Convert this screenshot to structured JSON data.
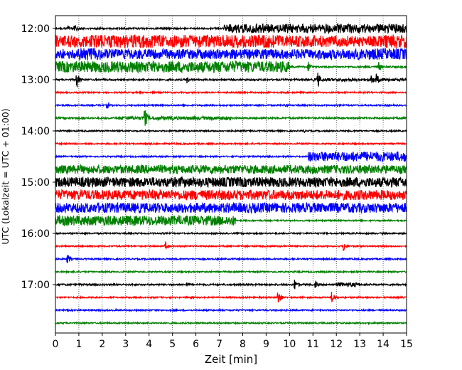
{
  "chart_data": {
    "type": "line",
    "title": "",
    "xlabel": "Zeit  [min]",
    "ylabel": "UTC (Lokalzeit = UTC + 01:00)",
    "xlim": [
      0,
      15
    ],
    "x_ticks": [
      "0",
      "1",
      "2",
      "3",
      "4",
      "5",
      "6",
      "7",
      "8",
      "9",
      "10",
      "11",
      "12",
      "13",
      "14",
      "15"
    ],
    "x_grid": "dotted vertical lines at every minute",
    "y_ticks": [
      {
        "label": "12:00",
        "minutes": 0
      },
      {
        "label": "13:00",
        "minutes": 60
      },
      {
        "label": "14:00",
        "minutes": 120
      },
      {
        "label": "15:00",
        "minutes": 180
      },
      {
        "label": "16:00",
        "minutes": 240
      },
      {
        "label": "17:00",
        "minutes": 300
      }
    ],
    "trace_interval_min": 15,
    "color_cycle": [
      "#000000",
      "#ff0000",
      "#0000ff",
      "#008000"
    ],
    "traces": [
      {
        "start": "12:00",
        "color": "#000000",
        "base": 1.2,
        "noise": [
          [
            7.2,
            15,
            6.5
          ]
        ],
        "events": [
          {
            "t": 0.5,
            "amp": 5
          },
          {
            "t": 0.8,
            "amp": 9
          }
        ]
      },
      {
        "start": "12:15",
        "color": "#ff0000",
        "base": 8,
        "noise": [
          [
            0,
            10,
            9
          ],
          [
            14,
            15,
            10
          ]
        ],
        "events": []
      },
      {
        "start": "12:30",
        "color": "#0000ff",
        "base": 7,
        "noise": [
          [
            1,
            2,
            9
          ],
          [
            12.5,
            15,
            8
          ]
        ],
        "events": [
          {
            "t": 1.2,
            "amp": 10
          }
        ]
      },
      {
        "start": "12:45",
        "color": "#008000",
        "base": 1.2,
        "noise": [
          [
            0,
            10,
            8
          ]
        ],
        "events": [
          {
            "t": 10.8,
            "amp": 9
          },
          {
            "t": 13.8,
            "amp": 8
          }
        ]
      },
      {
        "start": "13:00",
        "color": "#000000",
        "base": 1.2,
        "noise": [
          [
            11,
            15,
            2
          ]
        ],
        "events": [
          {
            "t": 0.9,
            "amp": 14
          },
          {
            "t": 5.6,
            "amp": 6
          },
          {
            "t": 11.2,
            "amp": 12
          },
          {
            "t": 13.5,
            "amp": 9
          },
          {
            "t": 13.7,
            "amp": 10
          }
        ]
      },
      {
        "start": "13:15",
        "color": "#ff0000",
        "base": 1,
        "noise": [],
        "events": []
      },
      {
        "start": "13:30",
        "color": "#0000ff",
        "base": 1,
        "noise": [],
        "events": [
          {
            "t": 2.2,
            "amp": 6
          },
          {
            "t": 9.8,
            "amp": 4
          }
        ]
      },
      {
        "start": "13:45",
        "color": "#008000",
        "base": 1.2,
        "noise": [
          [
            2.7,
            7.5,
            2.5
          ]
        ],
        "events": [
          {
            "t": 3.8,
            "amp": 16
          }
        ]
      },
      {
        "start": "14:00",
        "color": "#000000",
        "base": 1,
        "noise": [],
        "events": [
          {
            "t": 10.6,
            "amp": 3
          }
        ]
      },
      {
        "start": "14:15",
        "color": "#ff0000",
        "base": 1,
        "noise": [],
        "events": []
      },
      {
        "start": "14:30",
        "color": "#0000ff",
        "base": 1,
        "noise": [
          [
            10.8,
            15,
            7
          ]
        ],
        "events": []
      },
      {
        "start": "14:45",
        "color": "#008000",
        "base": 6,
        "noise": [
          [
            0,
            15,
            6
          ]
        ],
        "events": []
      },
      {
        "start": "15:00",
        "color": "#000000",
        "base": 7,
        "noise": [
          [
            0,
            15,
            7
          ]
        ],
        "events": []
      },
      {
        "start": "15:15",
        "color": "#ff0000",
        "base": 7,
        "noise": [
          [
            0,
            15,
            7
          ]
        ],
        "events": [
          {
            "t": 1.1,
            "amp": 12
          }
        ]
      },
      {
        "start": "15:30",
        "color": "#0000ff",
        "base": 7,
        "noise": [
          [
            0,
            15,
            7
          ]
        ],
        "events": []
      },
      {
        "start": "15:45",
        "color": "#008000",
        "base": 1,
        "noise": [
          [
            0,
            7.7,
            7
          ]
        ],
        "events": []
      },
      {
        "start": "16:00",
        "color": "#000000",
        "base": 1,
        "noise": [],
        "events": []
      },
      {
        "start": "16:15",
        "color": "#ff0000",
        "base": 1,
        "noise": [],
        "events": [
          {
            "t": 4.7,
            "amp": 7
          },
          {
            "t": 12.3,
            "amp": 9
          }
        ]
      },
      {
        "start": "16:30",
        "color": "#0000ff",
        "base": 1,
        "noise": [],
        "events": [
          {
            "t": 0.5,
            "amp": 9
          }
        ]
      },
      {
        "start": "16:45",
        "color": "#008000",
        "base": 1,
        "noise": [],
        "events": []
      },
      {
        "start": "17:00",
        "color": "#000000",
        "base": 1.2,
        "noise": [
          [
            12,
            13,
            3
          ]
        ],
        "events": [
          {
            "t": 5.6,
            "amp": 5
          },
          {
            "t": 10.2,
            "amp": 10
          },
          {
            "t": 11.1,
            "amp": 6
          },
          {
            "t": 12.4,
            "amp": 4
          }
        ]
      },
      {
        "start": "17:15",
        "color": "#ff0000",
        "base": 1,
        "noise": [],
        "events": [
          {
            "t": 9.5,
            "amp": 12
          },
          {
            "t": 11.8,
            "amp": 10
          }
        ]
      },
      {
        "start": "17:30",
        "color": "#0000ff",
        "base": 1,
        "noise": [],
        "events": []
      },
      {
        "start": "17:45",
        "color": "#008000",
        "base": 1,
        "noise": [],
        "events": []
      }
    ]
  }
}
